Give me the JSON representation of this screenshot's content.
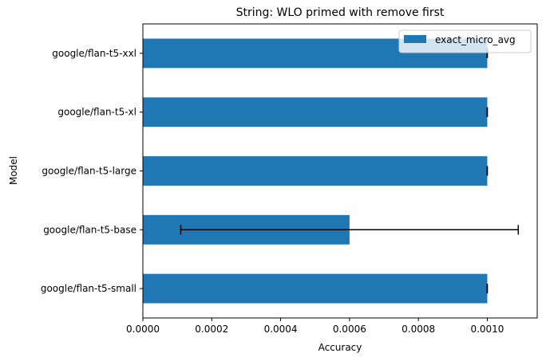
{
  "chart_data": {
    "type": "bar",
    "orientation": "horizontal",
    "title": "String: WLO primed with remove first",
    "xlabel": "Accuracy",
    "ylabel": "Model",
    "categories": [
      "google/flan-t5-small",
      "google/flan-t5-base",
      "google/flan-t5-large",
      "google/flan-t5-xl",
      "google/flan-t5-xxl"
    ],
    "series": [
      {
        "name": "exact_micro_avg",
        "values": [
          0.001,
          0.0006,
          0.001,
          0.001,
          0.001
        ],
        "error": [
          0.0,
          0.00049,
          0.0,
          0.0,
          0.0
        ],
        "color": "#1f77b4"
      }
    ],
    "xlim": [
      0,
      0.001145
    ],
    "xticks": [
      0.0,
      0.0002,
      0.0004,
      0.0006,
      0.0008,
      0.001
    ],
    "xtick_labels": [
      "0.0000",
      "0.0002",
      "0.0004",
      "0.0006",
      "0.0008",
      "0.0010"
    ],
    "grid": false,
    "legend_position": "top-right"
  }
}
